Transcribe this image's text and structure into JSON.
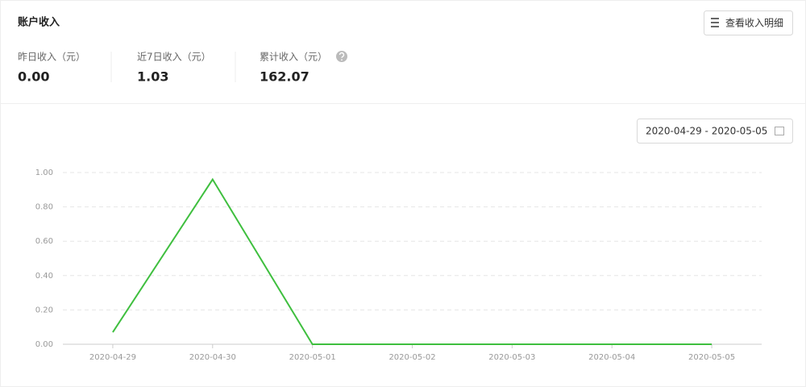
{
  "header": {
    "title": "账户收入",
    "button": "查看收入明细"
  },
  "stats": [
    {
      "label": "昨日收入（元）",
      "value": "0.00"
    },
    {
      "label": "近7日收入（元）",
      "value": "1.03"
    },
    {
      "label": "累计收入（元）",
      "value": "162.07"
    }
  ],
  "date_range": "2020-04-29 - 2020-05-05",
  "chart_data": {
    "type": "line",
    "categories": [
      "2020-04-29",
      "2020-04-30",
      "2020-05-01",
      "2020-05-02",
      "2020-05-03",
      "2020-05-04",
      "2020-05-05"
    ],
    "values": [
      0.07,
      0.96,
      0,
      0,
      0,
      0,
      0
    ],
    "color": "#3fbf3f",
    "ylim": [
      0,
      1
    ],
    "yticks": [
      {
        "value": 0,
        "label": "0.00"
      },
      {
        "value": 0.2,
        "label": "0.20"
      },
      {
        "value": 0.4,
        "label": "0.40"
      },
      {
        "value": 0.6,
        "label": "0.60"
      },
      {
        "value": 0.8,
        "label": "0.80"
      },
      {
        "value": 1,
        "label": "1.00"
      }
    ],
    "grid": true
  }
}
